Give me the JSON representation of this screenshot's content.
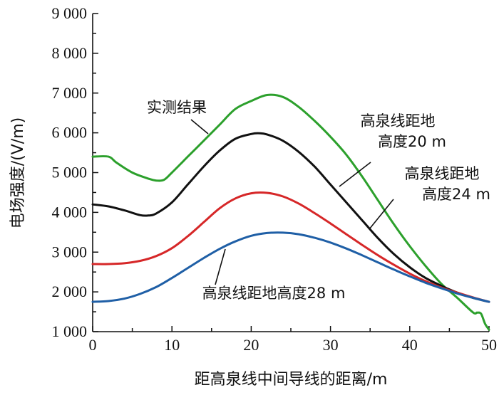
{
  "chart_data": {
    "type": "line",
    "xlabel": "距高泉线中间导线的距离/m",
    "ylabel": "电场强度/(V/m)",
    "xlim": [
      0,
      50
    ],
    "ylim": [
      1000,
      9000
    ],
    "x_ticks": [
      "0",
      "10",
      "20",
      "30",
      "40",
      "50"
    ],
    "y_ticks": [
      "1 000",
      "2 000",
      "3 000",
      "4 000",
      "5 000",
      "6 000",
      "7 000",
      "8 000",
      "9 000"
    ],
    "grid": false,
    "legend": "none",
    "series": [
      {
        "name": "实测结果",
        "color": "#2ca02c",
        "x": [
          0,
          2,
          3,
          5,
          7,
          8,
          9,
          10,
          12,
          14,
          16,
          18,
          20,
          22,
          24,
          26,
          28,
          30,
          32,
          34,
          36,
          38,
          40,
          42,
          44,
          46,
          48,
          48.5,
          49,
          49.5,
          50
        ],
        "y": [
          5400,
          5400,
          5250,
          5000,
          4850,
          4800,
          4820,
          5000,
          5400,
          5800,
          6200,
          6600,
          6800,
          6950,
          6900,
          6650,
          6300,
          5900,
          5450,
          4900,
          4300,
          3700,
          3150,
          2650,
          2200,
          1850,
          1480,
          1480,
          1450,
          1200,
          1050
        ]
      },
      {
        "name": "高泉线距地高度20 m",
        "color": "#111111",
        "x": [
          0,
          2,
          4,
          6,
          7,
          8,
          10,
          12,
          14,
          16,
          18,
          20,
          21,
          22,
          24,
          26,
          28,
          30,
          32,
          34,
          36,
          38,
          40,
          42,
          44,
          46,
          48,
          50
        ],
        "y": [
          4200,
          4150,
          4050,
          3930,
          3920,
          3970,
          4250,
          4700,
          5150,
          5550,
          5850,
          5970,
          5990,
          5960,
          5800,
          5520,
          5150,
          4700,
          4250,
          3800,
          3350,
          2950,
          2620,
          2350,
          2150,
          1980,
          1850,
          1750
        ]
      },
      {
        "name": "高泉线距地高度24 m",
        "color": "#d62728",
        "x": [
          0,
          2,
          4,
          6,
          8,
          10,
          12,
          14,
          16,
          18,
          20,
          22,
          24,
          26,
          28,
          30,
          32,
          34,
          36,
          38,
          40,
          42,
          44,
          46,
          48,
          50
        ],
        "y": [
          2700,
          2700,
          2720,
          2780,
          2900,
          3100,
          3400,
          3750,
          4100,
          4350,
          4480,
          4490,
          4400,
          4220,
          3980,
          3720,
          3450,
          3180,
          2920,
          2680,
          2460,
          2270,
          2110,
          1980,
          1860,
          1750
        ]
      },
      {
        "name": "高泉线距地高度28 m",
        "color": "#1f5fa6",
        "x": [
          0,
          2,
          4,
          6,
          8,
          10,
          12,
          14,
          16,
          18,
          20,
          22,
          24,
          26,
          28,
          30,
          32,
          34,
          36,
          38,
          40,
          42,
          44,
          46,
          48,
          50
        ],
        "y": [
          1750,
          1770,
          1830,
          1950,
          2120,
          2350,
          2600,
          2850,
          3080,
          3270,
          3410,
          3480,
          3490,
          3450,
          3360,
          3240,
          3090,
          2920,
          2740,
          2560,
          2390,
          2230,
          2090,
          1960,
          1850,
          1750
        ]
      }
    ],
    "annotations": [
      {
        "lines": [
          "实测结果"
        ],
        "series": 0
      },
      {
        "lines": [
          "高泉线距地",
          "高度20 m"
        ],
        "series": 1
      },
      {
        "lines": [
          "高泉线距地",
          "高度24 m"
        ],
        "series": 2
      },
      {
        "lines": [
          "高泉线距地高度28 m"
        ],
        "series": 3
      }
    ]
  }
}
